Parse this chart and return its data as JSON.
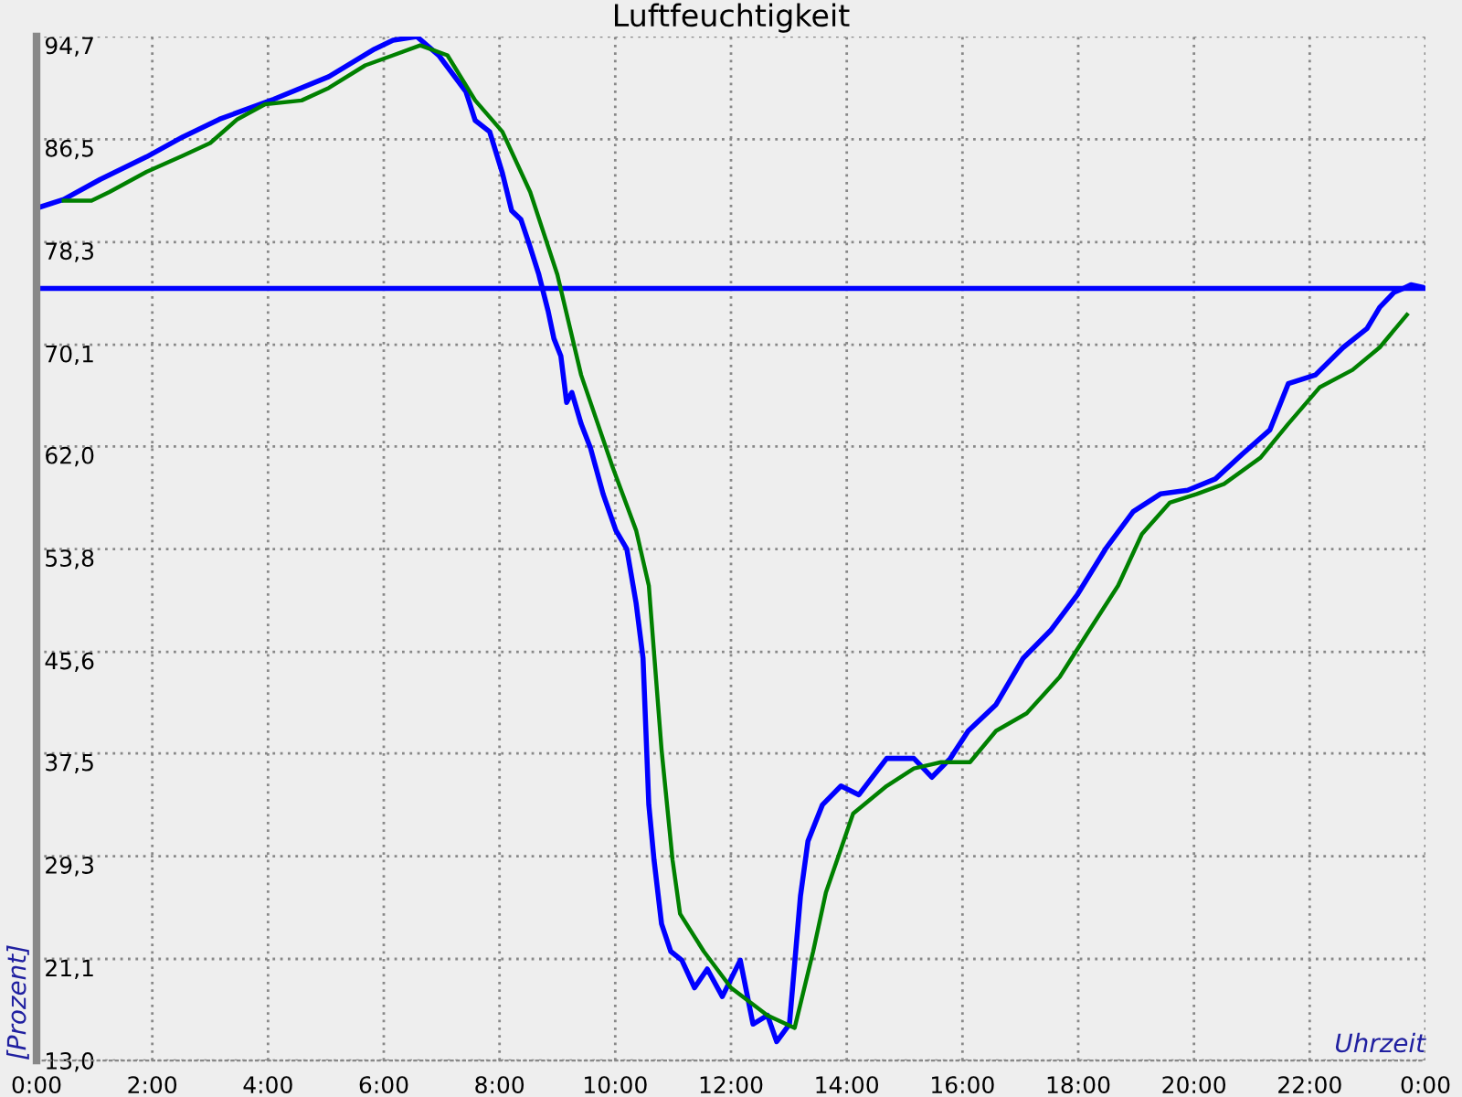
{
  "chart_data": {
    "type": "line",
    "title": "Luftfeuchtigkeit",
    "xlabel": "Uhrzeit",
    "ylabel": "[Prozent]",
    "xlim": [
      0,
      24
    ],
    "ylim": [
      13.0,
      94.7
    ],
    "xticks": [
      {
        "value": 0,
        "label": "0:00"
      },
      {
        "value": 2,
        "label": "2:00"
      },
      {
        "value": 4,
        "label": "4:00"
      },
      {
        "value": 6,
        "label": "6:00"
      },
      {
        "value": 8,
        "label": "8:00"
      },
      {
        "value": 10,
        "label": "10:00"
      },
      {
        "value": 12,
        "label": "12:00"
      },
      {
        "value": 14,
        "label": "14:00"
      },
      {
        "value": 16,
        "label": "16:00"
      },
      {
        "value": 18,
        "label": "18:00"
      },
      {
        "value": 20,
        "label": "20:00"
      },
      {
        "value": 22,
        "label": "22:00"
      },
      {
        "value": 24,
        "label": "0:00"
      }
    ],
    "yticks": [
      {
        "value": 13.0,
        "label": "13,0"
      },
      {
        "value": 21.1,
        "label": "21,1"
      },
      {
        "value": 29.3,
        "label": "29,3"
      },
      {
        "value": 37.5,
        "label": "37,5"
      },
      {
        "value": 45.6,
        "label": "45,6"
      },
      {
        "value": 53.8,
        "label": "53,8"
      },
      {
        "value": 62.0,
        "label": "62,0"
      },
      {
        "value": 70.1,
        "label": "70,1"
      },
      {
        "value": 78.3,
        "label": "78,3"
      },
      {
        "value": 86.5,
        "label": "86,5"
      },
      {
        "value": 94.7,
        "label": "94,7"
      }
    ],
    "grid": true,
    "marker": "none",
    "line_style": "solid",
    "ref_lines": [
      {
        "axis": "y",
        "value": 74.6,
        "color": "#0000ff",
        "line_style": "solid"
      }
    ],
    "series": [
      {
        "color": "#0000ff",
        "x": [
          0,
          0.47,
          1.1,
          1.9,
          2.53,
          3.16,
          4.1,
          5.05,
          5.84,
          6.16,
          6.57,
          6.95,
          7.42,
          7.58,
          7.83,
          8.05,
          8.21,
          8.37,
          8.53,
          8.68,
          8.84,
          8.94,
          9.06,
          9.16,
          9.25,
          9.41,
          9.57,
          9.79,
          10.01,
          10.2,
          10.36,
          10.48,
          10.58,
          10.67,
          10.8,
          10.96,
          11.15,
          11.37,
          11.59,
          11.85,
          12.16,
          12.38,
          12.63,
          12.79,
          13.01,
          13.2,
          13.33,
          13.58,
          13.9,
          14.21,
          14.69,
          15.16,
          15.47,
          15.79,
          16.1,
          16.58,
          17.05,
          17.52,
          17.99,
          18.47,
          18.95,
          19.42,
          19.89,
          20.37,
          20.84,
          21.31,
          21.63,
          22.1,
          22.58,
          22.99,
          23.21,
          23.46,
          23.62,
          23.75,
          23.94
        ],
        "values": [
          81.0,
          81.7,
          83.3,
          85.1,
          86.7,
          88.1,
          89.7,
          91.5,
          93.7,
          94.4,
          94.7,
          93.2,
          90.3,
          88.0,
          87.1,
          83.8,
          80.8,
          80.1,
          77.9,
          75.7,
          72.8,
          70.6,
          69.2,
          65.5,
          66.3,
          63.8,
          61.9,
          58.2,
          55.3,
          53.8,
          49.5,
          45.1,
          33.4,
          29.0,
          23.9,
          21.7,
          21.0,
          18.8,
          20.3,
          18.1,
          21.0,
          15.9,
          16.6,
          14.5,
          15.9,
          26.1,
          30.5,
          33.4,
          34.9,
          34.2,
          37.1,
          37.1,
          35.6,
          37.1,
          39.3,
          41.4,
          45.1,
          47.3,
          50.2,
          53.8,
          56.8,
          58.2,
          58.5,
          59.4,
          61.4,
          63.3,
          67.0,
          67.7,
          69.9,
          71.4,
          73.1,
          74.3,
          74.6,
          74.9,
          74.7
        ]
      },
      {
        "color": "#008000",
        "x": [
          0.47,
          0.95,
          1.26,
          1.9,
          2.53,
          3.0,
          3.47,
          3.95,
          4.58,
          5.05,
          5.68,
          6.16,
          6.63,
          7.1,
          7.58,
          8.05,
          8.53,
          9.0,
          9.41,
          9.95,
          10.36,
          10.58,
          10.8,
          10.99,
          11.12,
          11.53,
          12.0,
          12.63,
          13.1,
          13.42,
          13.64,
          14.11,
          14.69,
          15.16,
          15.63,
          16.13,
          16.58,
          17.11,
          17.68,
          18.19,
          18.69,
          19.1,
          19.58,
          20.05,
          20.52,
          21.15,
          21.63,
          22.17,
          22.74,
          23.21,
          23.68
        ],
        "values": [
          81.6,
          81.6,
          82.3,
          83.9,
          85.2,
          86.2,
          88.1,
          89.3,
          89.6,
          90.6,
          92.4,
          93.2,
          94.0,
          93.2,
          89.6,
          87.1,
          82.3,
          75.7,
          67.7,
          60.4,
          55.3,
          50.9,
          37.8,
          29.0,
          24.7,
          21.7,
          18.8,
          16.6,
          15.6,
          21.7,
          26.4,
          32.7,
          34.9,
          36.3,
          36.8,
          36.8,
          39.3,
          40.7,
          43.6,
          47.3,
          50.9,
          55.0,
          57.5,
          58.2,
          59.0,
          61.1,
          63.8,
          66.7,
          68.1,
          69.9,
          72.5
        ]
      }
    ]
  }
}
